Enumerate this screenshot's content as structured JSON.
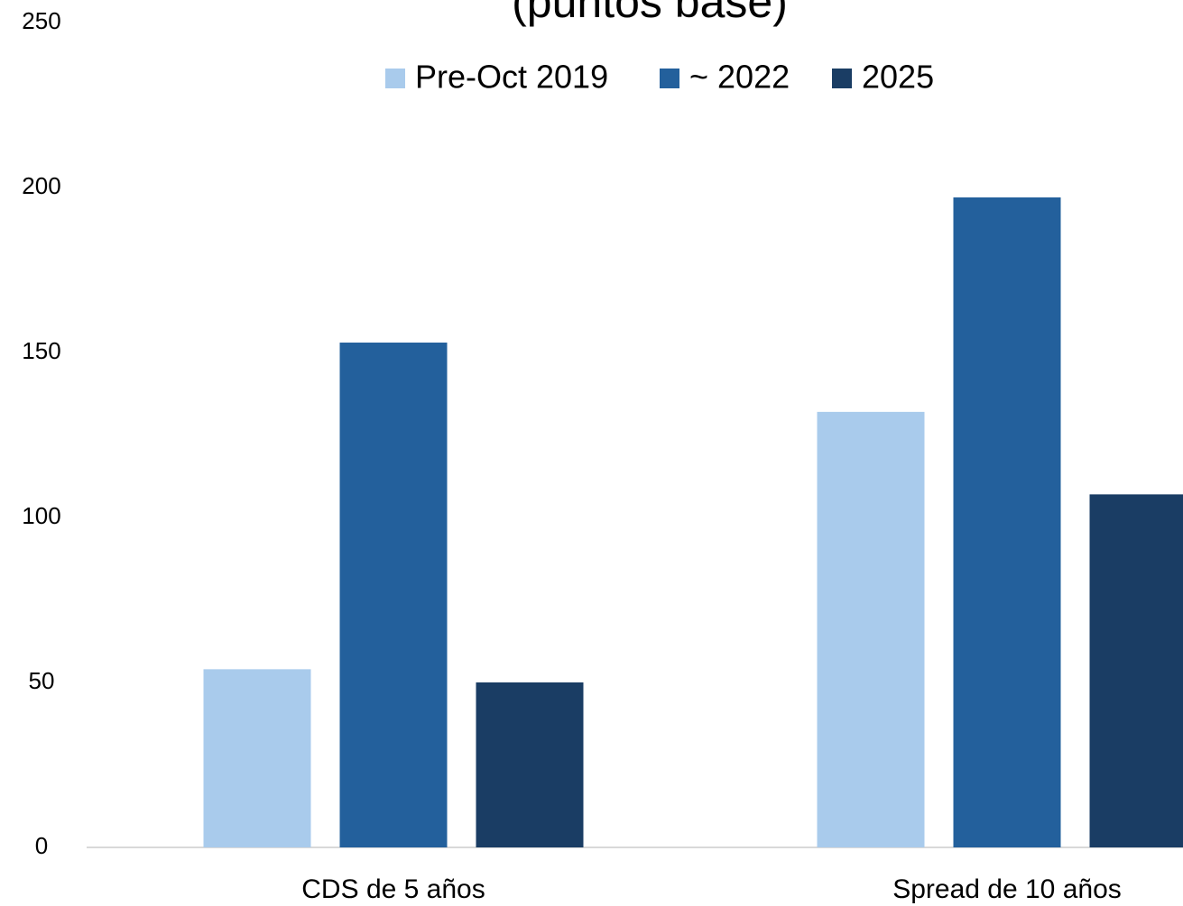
{
  "chart_data": {
    "type": "bar",
    "title": "(puntos base)",
    "categories": [
      "CDS de 5 años",
      "Spread de 10 años"
    ],
    "series": [
      {
        "name": "Pre-Oct 2019",
        "color": "#a9cbec",
        "values": [
          54,
          132
        ]
      },
      {
        "name": "~ 2022",
        "color": "#23609c",
        "values": [
          153,
          197
        ]
      },
      {
        "name": "2025",
        "color": "#1a3d64",
        "values": [
          50,
          107
        ]
      }
    ],
    "ylim": [
      0,
      250
    ],
    "yticks": [
      0,
      50,
      100,
      150,
      200,
      250
    ],
    "grid": false,
    "legend": "top"
  }
}
